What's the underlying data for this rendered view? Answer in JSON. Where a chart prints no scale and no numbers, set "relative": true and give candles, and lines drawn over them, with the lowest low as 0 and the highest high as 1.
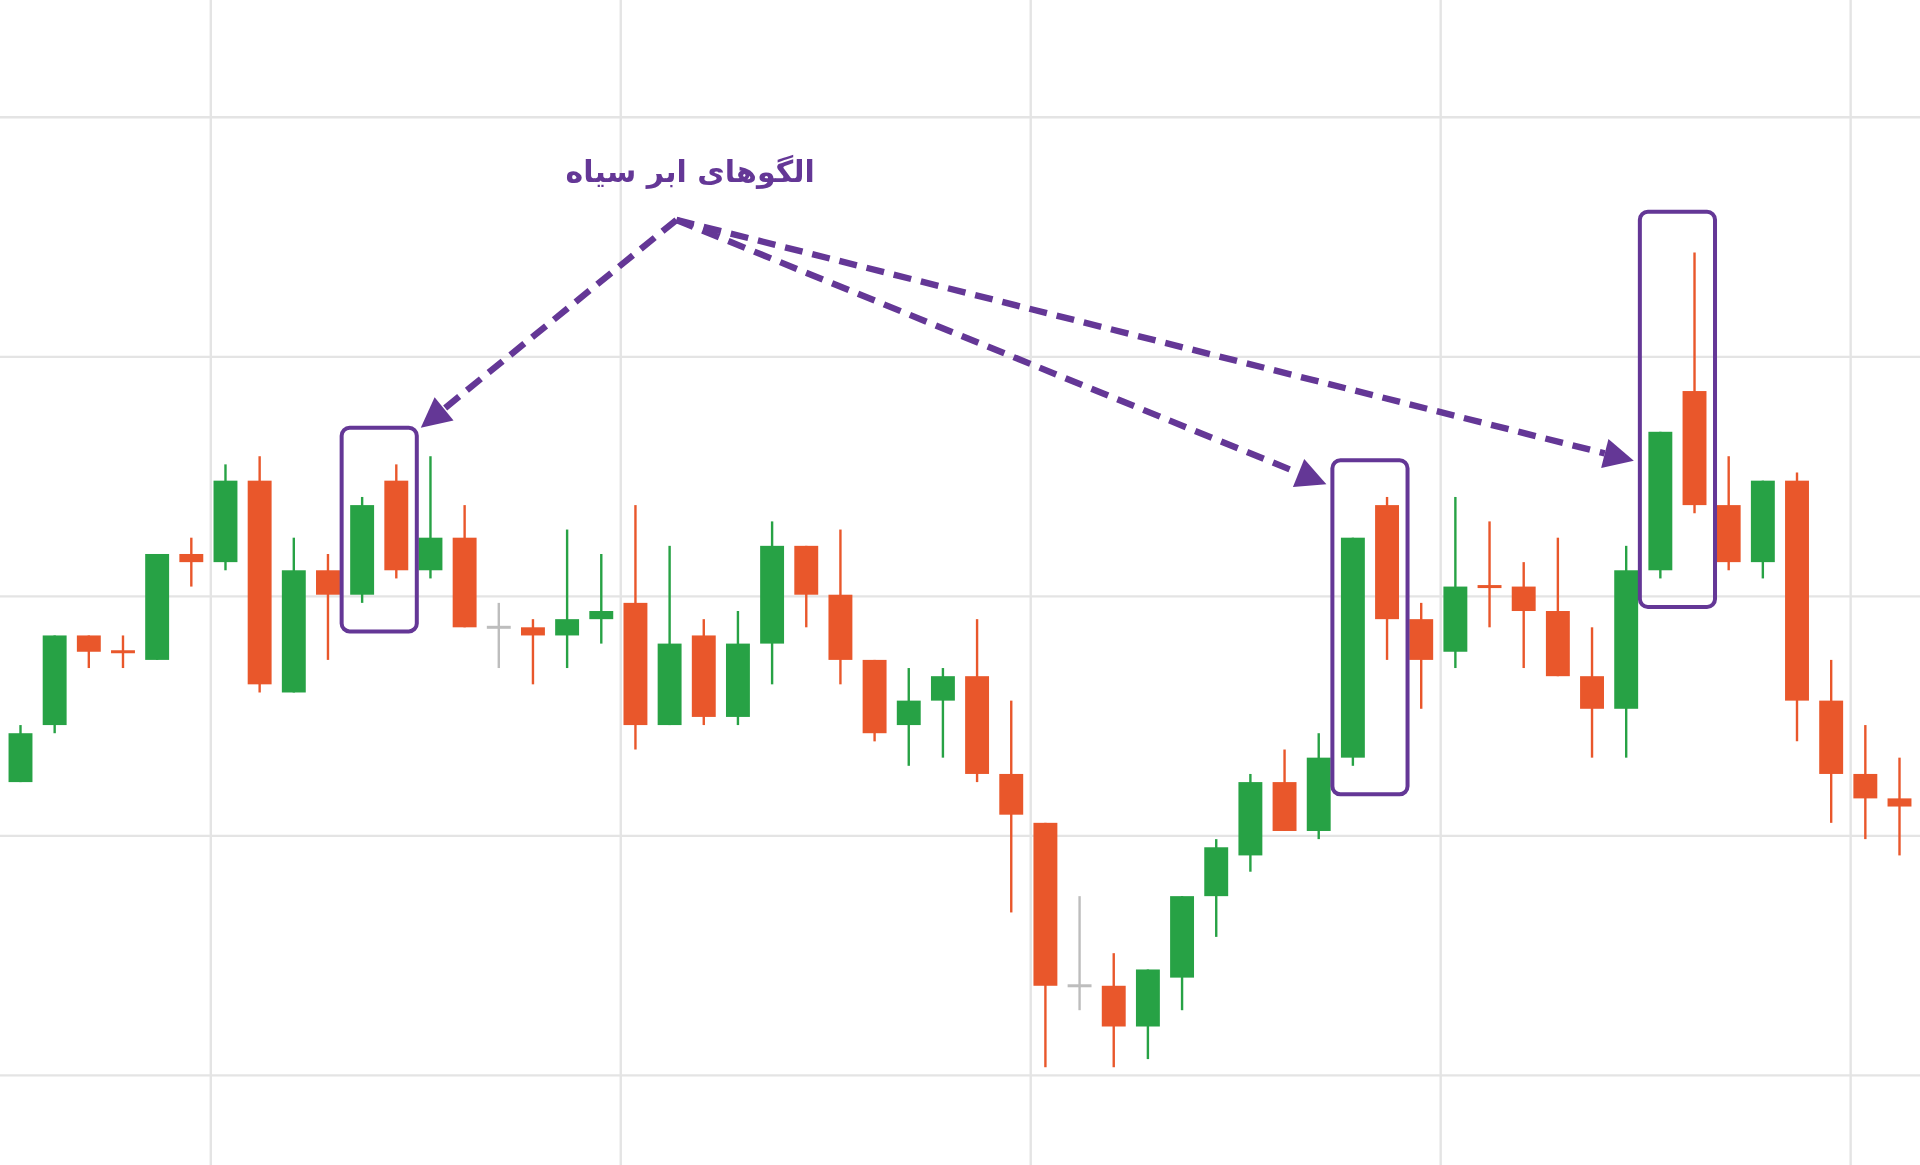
{
  "chart_data": {
    "type": "candlestick",
    "relative": true,
    "grid": true,
    "annotations": [
      "الگوهای ابر سیاه"
    ],
    "categories": [
      null,
      null,
      null,
      null,
      null,
      null,
      null,
      null,
      null,
      null,
      null,
      null,
      null,
      null,
      null,
      null,
      null,
      null,
      null,
      null,
      null,
      null,
      null,
      null,
      null,
      null,
      null,
      null,
      null,
      null,
      null,
      null,
      null,
      null,
      null,
      null,
      null,
      null,
      null,
      null,
      null,
      null,
      null,
      null,
      null,
      null,
      null,
      null,
      null,
      null,
      null,
      null,
      null,
      null,
      null,
      null
    ],
    "ohlc": [
      [
        0.35,
        0.42,
        0.35,
        0.41
      ],
      [
        0.42,
        0.53,
        0.41,
        0.53
      ],
      [
        0.53,
        0.53,
        0.49,
        0.51
      ],
      [
        0.51,
        0.53,
        0.49,
        0.51
      ],
      [
        0.5,
        0.63,
        0.5,
        0.63
      ],
      [
        0.63,
        0.65,
        0.59,
        0.62
      ],
      [
        0.62,
        0.74,
        0.61,
        0.72
      ],
      [
        0.72,
        0.75,
        0.46,
        0.47
      ],
      [
        0.46,
        0.65,
        0.46,
        0.61
      ],
      [
        0.61,
        0.63,
        0.5,
        0.58
      ],
      [
        0.58,
        0.7,
        0.57,
        0.69
      ],
      [
        0.72,
        0.74,
        0.6,
        0.61
      ],
      [
        0.61,
        0.75,
        0.6,
        0.65
      ],
      [
        0.65,
        0.69,
        0.54,
        0.54
      ],
      [
        0.54,
        0.57,
        0.49,
        0.54
      ],
      [
        0.54,
        0.55,
        0.47,
        0.53
      ],
      [
        0.53,
        0.66,
        0.49,
        0.55
      ],
      [
        0.55,
        0.63,
        0.52,
        0.56
      ],
      [
        0.57,
        0.69,
        0.39,
        0.42
      ],
      [
        0.42,
        0.64,
        0.42,
        0.52
      ],
      [
        0.53,
        0.55,
        0.42,
        0.43
      ],
      [
        0.43,
        0.56,
        0.42,
        0.52
      ],
      [
        0.52,
        0.67,
        0.47,
        0.64
      ],
      [
        0.64,
        0.64,
        0.54,
        0.58
      ],
      [
        0.58,
        0.66,
        0.47,
        0.5
      ],
      [
        0.5,
        0.5,
        0.4,
        0.41
      ],
      [
        0.42,
        0.49,
        0.37,
        0.45
      ],
      [
        0.45,
        0.49,
        0.38,
        0.48
      ],
      [
        0.48,
        0.55,
        0.35,
        0.36
      ],
      [
        0.36,
        0.45,
        0.19,
        0.31
      ],
      [
        0.3,
        0.3,
        0,
        0.1
      ],
      [
        0.1,
        0.21,
        0.07,
        0.1
      ],
      [
        0.1,
        0.14,
        0,
        0.05
      ],
      [
        0.05,
        0.12,
        0.01,
        0.12
      ],
      [
        0.11,
        0.21,
        0.07,
        0.21
      ],
      [
        0.21,
        0.28,
        0.16,
        0.27
      ],
      [
        0.26,
        0.36,
        0.24,
        0.35
      ],
      [
        0.35,
        0.39,
        0.29,
        0.29
      ],
      [
        0.29,
        0.41,
        0.28,
        0.38
      ],
      [
        0.38,
        0.65,
        0.37,
        0.65
      ],
      [
        0.69,
        0.7,
        0.5,
        0.55
      ],
      [
        0.55,
        0.57,
        0.44,
        0.5
      ],
      [
        0.51,
        0.7,
        0.49,
        0.59
      ],
      [
        0.59,
        0.67,
        0.54,
        0.59
      ],
      [
        0.59,
        0.62,
        0.49,
        0.56
      ],
      [
        0.56,
        0.65,
        0.48,
        0.48
      ],
      [
        0.48,
        0.54,
        0.38,
        0.44
      ],
      [
        0.44,
        0.64,
        0.38,
        0.61
      ],
      [
        0.61,
        0.78,
        0.6,
        0.78
      ],
      [
        0.83,
        1,
        0.68,
        0.69
      ],
      [
        0.69,
        0.75,
        0.61,
        0.62
      ],
      [
        0.62,
        0.72,
        0.6,
        0.72
      ],
      [
        0.72,
        0.73,
        0.4,
        0.45
      ],
      [
        0.45,
        0.5,
        0.3,
        0.36
      ],
      [
        0.36,
        0.42,
        0.28,
        0.33
      ],
      [
        0.33,
        0.38,
        0.26,
        0.32
      ]
    ],
    "colors": [
      "#27a245",
      "#27a245",
      "#e9572b",
      "#e9572b",
      "#27a245",
      "#e9572b",
      "#27a245",
      "#e9572b",
      "#27a245",
      "#e9572b",
      "#27a245",
      "#e9572b",
      "#27a245",
      "#e9572b",
      "#bdbdbd",
      "#e9572b",
      "#27a245",
      "#27a245",
      "#e9572b",
      "#27a245",
      "#e9572b",
      "#27a245",
      "#27a245",
      "#e9572b",
      "#e9572b",
      "#e9572b",
      "#27a245",
      "#27a245",
      "#e9572b",
      "#e9572b",
      "#e9572b",
      "#bdbdbd",
      "#e9572b",
      "#27a245",
      "#27a245",
      "#27a245",
      "#27a245",
      "#e9572b",
      "#27a245",
      "#27a245",
      "#e9572b",
      "#e9572b",
      "#27a245",
      "#e9572b",
      "#e9572b",
      "#e9572b",
      "#e9572b",
      "#27a245",
      "#27a245",
      "#e9572b",
      "#e9572b",
      "#27a245",
      "#e9572b",
      "#e9572b",
      "#e9572b",
      "#e9572b"
    ]
  }
}
